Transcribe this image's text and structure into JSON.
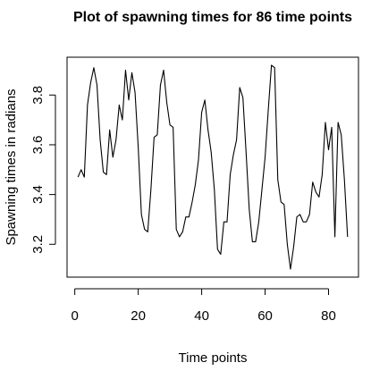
{
  "chart_data": {
    "type": "line",
    "title": "Plot of spawning times for 86 time points",
    "xlabel": "Time points",
    "ylabel": "Spawning times in radians",
    "xlim": [
      -2.44,
      89.44
    ],
    "ylim": [
      3.068,
      3.952
    ],
    "x_ticks": [
      0,
      20,
      40,
      60,
      80
    ],
    "y_ticks": [
      3.2,
      3.4,
      3.6,
      3.8
    ],
    "grid": false,
    "line_color": "#000000",
    "x": [
      1,
      2,
      3,
      4,
      5,
      6,
      7,
      8,
      9,
      10,
      11,
      12,
      13,
      14,
      15,
      16,
      17,
      18,
      19,
      20,
      21,
      22,
      23,
      24,
      25,
      26,
      27,
      28,
      29,
      30,
      31,
      32,
      33,
      34,
      35,
      36,
      37,
      38,
      39,
      40,
      41,
      42,
      43,
      44,
      45,
      46,
      47,
      48,
      49,
      50,
      51,
      52,
      53,
      54,
      55,
      56,
      57,
      58,
      59,
      60,
      61,
      62,
      63,
      64,
      65,
      66,
      67,
      68,
      69,
      70,
      71,
      72,
      73,
      74,
      75,
      76,
      77,
      78,
      79,
      80,
      81,
      82,
      83,
      84,
      85,
      86
    ],
    "values": [
      3.47,
      3.5,
      3.47,
      3.76,
      3.85,
      3.91,
      3.84,
      3.62,
      3.49,
      3.48,
      3.66,
      3.55,
      3.62,
      3.76,
      3.7,
      3.9,
      3.78,
      3.89,
      3.81,
      3.59,
      3.32,
      3.26,
      3.25,
      3.42,
      3.63,
      3.64,
      3.84,
      3.9,
      3.77,
      3.68,
      3.67,
      3.26,
      3.23,
      3.25,
      3.31,
      3.31,
      3.37,
      3.44,
      3.54,
      3.73,
      3.78,
      3.66,
      3.57,
      3.42,
      3.18,
      3.16,
      3.29,
      3.29,
      3.48,
      3.56,
      3.62,
      3.83,
      3.79,
      3.57,
      3.34,
      3.21,
      3.21,
      3.29,
      3.42,
      3.55,
      3.74,
      3.92,
      3.91,
      3.46,
      3.37,
      3.36,
      3.2,
      3.1,
      3.19,
      3.31,
      3.32,
      3.29,
      3.29,
      3.32,
      3.45,
      3.41,
      3.39,
      3.48,
      3.69,
      3.58,
      3.67,
      3.23,
      3.69,
      3.64,
      3.46,
      3.23
    ]
  }
}
